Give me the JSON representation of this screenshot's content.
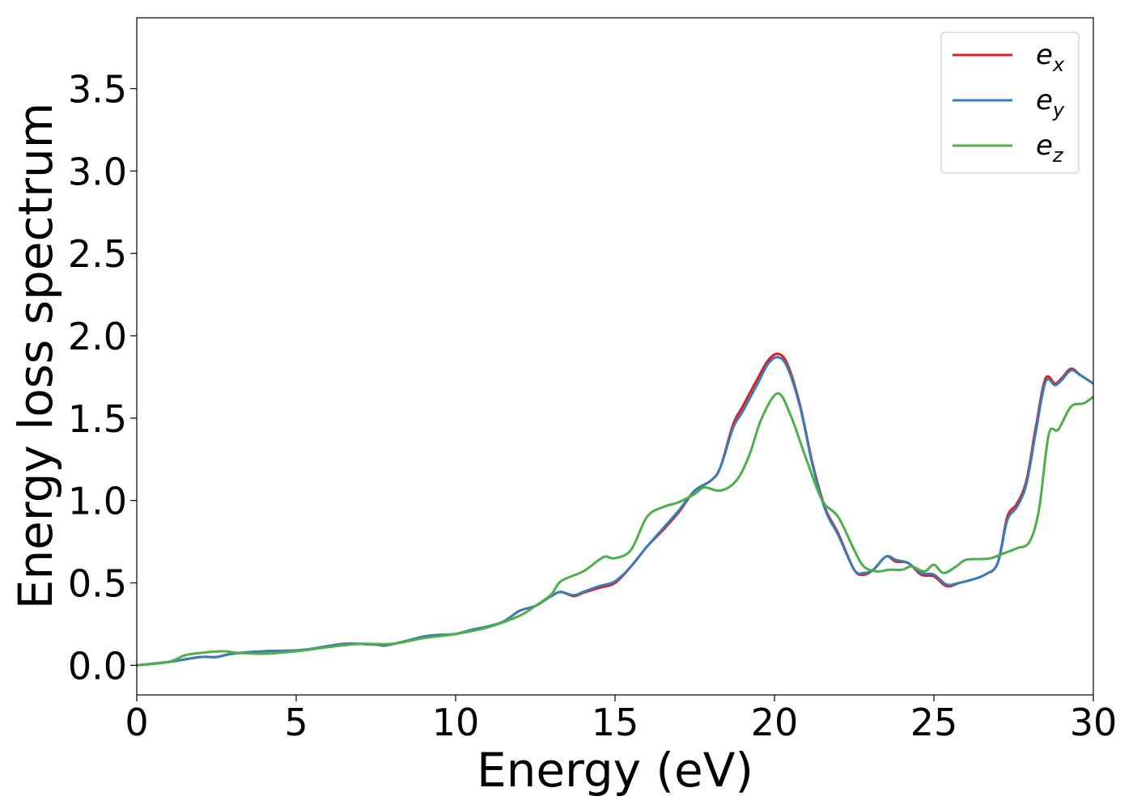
{
  "chart_data": {
    "type": "line",
    "title": "",
    "xlabel": "Energy (eV)",
    "ylabel": "Energy loss spectrum",
    "xlim": [
      0,
      30
    ],
    "ylim": [
      -0.18,
      3.93
    ],
    "xticks": [
      0,
      5,
      10,
      15,
      20,
      25,
      30
    ],
    "xtick_labels": [
      "0",
      "5",
      "10",
      "15",
      "20",
      "25",
      "30"
    ],
    "yticks": [
      0.0,
      0.5,
      1.0,
      1.5,
      2.0,
      2.5,
      3.0,
      3.5
    ],
    "ytick_labels": [
      "0.0",
      "0.5",
      "1.0",
      "1.5",
      "2.0",
      "2.5",
      "3.0",
      "3.5"
    ],
    "grid": false,
    "legend_position": "top-right",
    "series": [
      {
        "name": "e_x",
        "legend_base": "e",
        "legend_sub": "x",
        "color": "#e41a1c",
        "x": [
          0,
          1,
          2,
          2.5,
          3,
          4,
          5,
          5.5,
          6.5,
          7.5,
          7.8,
          8.5,
          9,
          9.5,
          10,
          10.5,
          11,
          11.5,
          12,
          12.5,
          13,
          13.3,
          13.7,
          14,
          14.5,
          15,
          15.5,
          16,
          16.5,
          17,
          17.5,
          18,
          18.3,
          18.7,
          19,
          19.5,
          19.8,
          20.1,
          20.4,
          20.8,
          21.2,
          21.6,
          22,
          22.5,
          22.8,
          23.1,
          23.5,
          23.8,
          24.2,
          24.6,
          25,
          25.4,
          25.8,
          26.2,
          26.6,
          27,
          27.3,
          27.6,
          27.9,
          28.2,
          28.5,
          28.8,
          29,
          29.3,
          29.6,
          30
        ],
        "y": [
          0.0,
          0.02,
          0.05,
          0.05,
          0.07,
          0.085,
          0.09,
          0.1,
          0.13,
          0.125,
          0.12,
          0.15,
          0.17,
          0.18,
          0.19,
          0.215,
          0.235,
          0.265,
          0.33,
          0.36,
          0.42,
          0.445,
          0.42,
          0.44,
          0.47,
          0.5,
          0.6,
          0.72,
          0.82,
          0.93,
          1.06,
          1.12,
          1.2,
          1.46,
          1.57,
          1.75,
          1.85,
          1.89,
          1.83,
          1.58,
          1.22,
          0.95,
          0.8,
          0.58,
          0.55,
          0.58,
          0.66,
          0.63,
          0.62,
          0.55,
          0.54,
          0.48,
          0.5,
          0.52,
          0.55,
          0.62,
          0.9,
          0.98,
          1.12,
          1.45,
          1.74,
          1.71,
          1.74,
          1.8,
          1.76,
          1.71
        ]
      },
      {
        "name": "e_y",
        "legend_base": "e",
        "legend_sub": "y",
        "color": "#377eb8",
        "x": [
          0,
          1,
          2,
          2.5,
          3,
          4,
          5,
          5.5,
          6.5,
          7.5,
          7.8,
          8.5,
          9,
          9.5,
          10,
          10.5,
          11,
          11.5,
          12,
          12.5,
          13,
          13.3,
          13.7,
          14,
          14.5,
          15,
          15.5,
          16,
          16.5,
          17,
          17.5,
          18,
          18.3,
          18.7,
          19,
          19.5,
          19.8,
          20.1,
          20.4,
          20.8,
          21.2,
          21.6,
          22,
          22.5,
          22.8,
          23.1,
          23.5,
          23.8,
          24.2,
          24.6,
          25,
          25.4,
          25.8,
          26.2,
          26.6,
          27,
          27.3,
          27.6,
          27.9,
          28.2,
          28.5,
          28.8,
          29,
          29.3,
          29.6,
          30
        ],
        "y": [
          0.0,
          0.02,
          0.05,
          0.05,
          0.07,
          0.085,
          0.09,
          0.1,
          0.13,
          0.125,
          0.12,
          0.15,
          0.175,
          0.185,
          0.19,
          0.215,
          0.235,
          0.265,
          0.33,
          0.36,
          0.42,
          0.445,
          0.425,
          0.445,
          0.48,
          0.51,
          0.6,
          0.72,
          0.83,
          0.94,
          1.06,
          1.12,
          1.2,
          1.44,
          1.54,
          1.72,
          1.83,
          1.87,
          1.81,
          1.57,
          1.21,
          0.94,
          0.79,
          0.58,
          0.56,
          0.58,
          0.66,
          0.64,
          0.62,
          0.56,
          0.55,
          0.49,
          0.5,
          0.52,
          0.55,
          0.62,
          0.88,
          0.96,
          1.1,
          1.42,
          1.72,
          1.7,
          1.73,
          1.79,
          1.76,
          1.71
        ]
      },
      {
        "name": "e_z",
        "legend_base": "e",
        "legend_sub": "z",
        "color": "#4daf4a",
        "x": [
          0,
          1,
          1.5,
          2,
          2.7,
          3.2,
          4,
          5,
          6,
          7,
          8,
          9,
          10,
          11,
          12,
          12.5,
          13,
          13.3,
          14,
          14.5,
          14.7,
          15,
          15.5,
          16,
          16.5,
          17,
          17.5,
          17.8,
          18.3,
          18.8,
          19.2,
          19.6,
          20.1,
          20.5,
          21,
          21.5,
          22,
          22.5,
          22.8,
          23.2,
          23.6,
          24,
          24.3,
          24.7,
          25,
          25.3,
          25.7,
          26,
          26.5,
          26.8,
          27.2,
          27.6,
          28,
          28.3,
          28.6,
          28.9,
          29.3,
          29.7,
          30
        ],
        "y": [
          0.0,
          0.02,
          0.06,
          0.075,
          0.085,
          0.075,
          0.07,
          0.085,
          0.11,
          0.13,
          0.13,
          0.165,
          0.19,
          0.23,
          0.3,
          0.36,
          0.43,
          0.51,
          0.57,
          0.64,
          0.66,
          0.65,
          0.7,
          0.9,
          0.96,
          0.99,
          1.04,
          1.08,
          1.06,
          1.12,
          1.27,
          1.5,
          1.65,
          1.52,
          1.25,
          1.0,
          0.9,
          0.7,
          0.6,
          0.57,
          0.58,
          0.58,
          0.6,
          0.57,
          0.61,
          0.56,
          0.6,
          0.64,
          0.645,
          0.65,
          0.68,
          0.71,
          0.75,
          0.95,
          1.4,
          1.43,
          1.57,
          1.59,
          1.63
        ]
      }
    ]
  }
}
